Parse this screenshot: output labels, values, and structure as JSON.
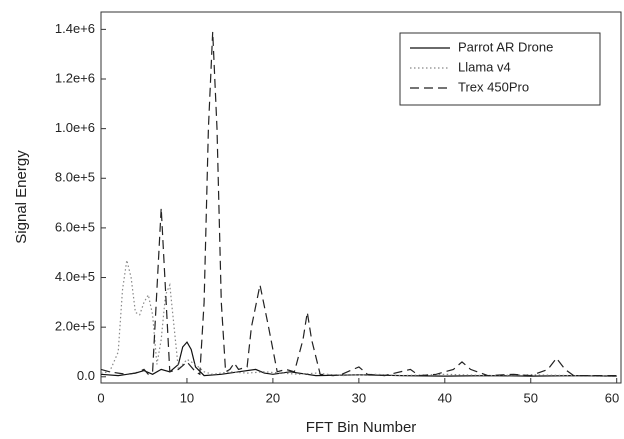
{
  "chart_data": {
    "type": "line",
    "xlabel": "FFT Bin Number",
    "ylabel": "Signal Energy",
    "xlim": [
      0,
      60.5
    ],
    "xticks": [
      0,
      10,
      20,
      30,
      40,
      50,
      60
    ],
    "ylim": [
      -25000,
      1470000
    ],
    "yticks": [
      {
        "value": 0,
        "label": "0.0"
      },
      {
        "value": 200000,
        "label": "2.0e+5"
      },
      {
        "value": 400000,
        "label": "4.0e+5"
      },
      {
        "value": 600000,
        "label": "6.0e+5"
      },
      {
        "value": 800000,
        "label": "8.0e+5"
      },
      {
        "value": 1000000,
        "label": "1.0e+6"
      },
      {
        "value": 1200000,
        "label": "1.2e+6"
      },
      {
        "value": 1400000,
        "label": "1.4e+6"
      }
    ],
    "legend": "upper right",
    "series": [
      {
        "name": "Parrot AR Drone",
        "color": "#111111",
        "style": "solid",
        "x": [
          0,
          2,
          4,
          5,
          6,
          7,
          8,
          9,
          9.5,
          10,
          10.5,
          11,
          12,
          14,
          16,
          18,
          19,
          20,
          22,
          25,
          30,
          35,
          40,
          45,
          50,
          55,
          60
        ],
        "values": [
          10000,
          5000,
          15000,
          25000,
          10000,
          30000,
          20000,
          50000,
          120000,
          140000,
          110000,
          40000,
          5000,
          10000,
          20000,
          30000,
          15000,
          10000,
          20000,
          5000,
          8000,
          5000,
          3000,
          5000,
          3000,
          5000,
          3000
        ]
      },
      {
        "name": "Llama v4",
        "color": "#888888",
        "style": "dotted",
        "x": [
          0,
          1,
          2,
          2.5,
          3,
          3.5,
          4,
          4.5,
          5,
          5.5,
          6,
          6.5,
          7,
          7.5,
          8,
          8.5,
          9,
          10,
          11,
          12,
          13,
          15,
          17,
          19,
          21,
          23,
          25,
          28,
          32,
          35,
          40,
          45,
          50,
          55,
          60
        ],
        "values": [
          15000,
          20000,
          100000,
          350000,
          470000,
          400000,
          260000,
          250000,
          300000,
          330000,
          250000,
          50000,
          150000,
          330000,
          370000,
          200000,
          30000,
          70000,
          50000,
          20000,
          10000,
          20000,
          15000,
          20000,
          15000,
          10000,
          15000,
          5000,
          10000,
          5000,
          10000,
          5000,
          8000,
          5000,
          5000
        ]
      },
      {
        "name": "Trex 450Pro",
        "color": "#222222",
        "style": "dashed",
        "x": [
          0,
          1,
          2,
          3,
          4,
          5,
          5.5,
          6,
          6.5,
          7,
          7.5,
          8,
          9,
          10,
          11,
          11.5,
          12,
          12.5,
          13,
          13.5,
          14,
          14.5,
          15,
          15.5,
          16,
          17,
          17.5,
          18.5,
          19.5,
          20.5,
          21.5,
          22.5,
          23.5,
          24,
          24.5,
          25.5,
          27,
          28,
          30,
          31,
          33,
          36,
          37,
          39,
          41,
          42,
          43,
          45,
          48,
          50,
          52,
          53,
          54,
          55,
          58,
          60
        ],
        "values": [
          30000,
          20000,
          15000,
          10000,
          15000,
          30000,
          10000,
          20000,
          350000,
          680000,
          350000,
          20000,
          30000,
          60000,
          20000,
          10000,
          300000,
          1000000,
          1390000,
          1000000,
          300000,
          20000,
          30000,
          55000,
          30000,
          40000,
          200000,
          370000,
          200000,
          20000,
          30000,
          20000,
          150000,
          260000,
          150000,
          10000,
          5000,
          10000,
          40000,
          10000,
          5000,
          30000,
          5000,
          10000,
          30000,
          60000,
          30000,
          5000,
          10000,
          5000,
          30000,
          75000,
          30000,
          5000,
          5000,
          5000
        ]
      }
    ]
  }
}
